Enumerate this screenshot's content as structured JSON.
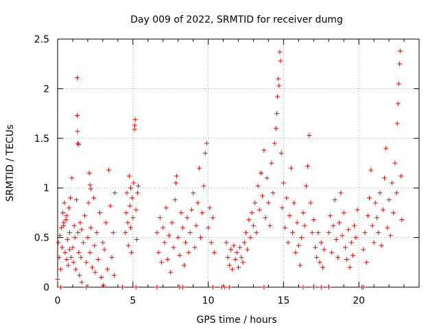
{
  "chart_data": {
    "type": "scatter",
    "title": "Day 009 of 2022, SRMTID for receiver dumg",
    "xlabel": "GPS time / hours",
    "ylabel": "SRMTID / TECUs",
    "xlim": [
      0,
      24
    ],
    "ylim": [
      0,
      2.5
    ],
    "grid": true,
    "x_ticks": [
      "0",
      "5",
      "10",
      "15",
      "20"
    ],
    "x_tick_values": [
      0,
      5,
      10,
      15,
      20
    ],
    "y_ticks": [
      "0",
      "0.5",
      "1",
      "1.5",
      "2",
      "2.5"
    ],
    "y_tick_values": [
      0,
      0.5,
      1,
      1.5,
      2,
      2.5
    ],
    "marker": "+",
    "color": "#ff0000",
    "series": [
      {
        "name": "SRMTID",
        "points": [
          [
            0.0,
            0.08
          ],
          [
            0.05,
            0.45
          ],
          [
            0.1,
            0.3
          ],
          [
            0.15,
            0.52
          ],
          [
            0.2,
            0.18
          ],
          [
            0.25,
            0.6
          ],
          [
            0.3,
            0.4
          ],
          [
            0.35,
            0.75
          ],
          [
            0.4,
            0.62
          ],
          [
            0.45,
            0.85
          ],
          [
            0.5,
            0.35
          ],
          [
            0.55,
            0.68
          ],
          [
            0.6,
            0.28
          ],
          [
            0.65,
            0.48
          ],
          [
            0.7,
            0.22
          ],
          [
            0.75,
            0.8
          ],
          [
            0.8,
            0.55
          ],
          [
            0.85,
            0.9
          ],
          [
            0.9,
            0.3
          ],
          [
            0.95,
            1.1
          ],
          [
            1.0,
            0.4
          ],
          [
            1.05,
            0.25
          ],
          [
            1.1,
            0.62
          ],
          [
            1.15,
            0.5
          ],
          [
            1.2,
            0.18
          ],
          [
            1.25,
            0.88
          ],
          [
            1.3,
            2.11
          ],
          [
            1.35,
            0.55
          ],
          [
            1.4,
            0.35
          ],
          [
            1.45,
            0.12
          ],
          [
            1.5,
            0.65
          ],
          [
            1.55,
            0.3
          ],
          [
            1.6,
            0.05
          ],
          [
            1.7,
            0.45
          ],
          [
            1.8,
            0.72
          ],
          [
            1.9,
            0.25
          ],
          [
            2.0,
            0.5
          ],
          [
            2.05,
            0.85
          ],
          [
            2.1,
            1.15
          ],
          [
            2.15,
            0.35
          ],
          [
            2.2,
            0.6
          ],
          [
            2.3,
            0.2
          ],
          [
            2.4,
            0.9
          ],
          [
            2.45,
            0.42
          ],
          [
            2.5,
            0.15
          ],
          [
            2.6,
            0.55
          ],
          [
            2.7,
            0.28
          ],
          [
            2.8,
            0.75
          ],
          [
            2.9,
            0.1
          ],
          [
            3.0,
            0.45
          ],
          [
            3.05,
            0.02
          ],
          [
            3.1,
            0.38
          ],
          [
            3.2,
            0.65
          ],
          [
            3.3,
            0.18
          ],
          [
            3.4,
            1.18
          ],
          [
            3.5,
            0.82
          ],
          [
            3.6,
            0.3
          ],
          [
            3.7,
            0.55
          ],
          [
            3.75,
            0.12
          ],
          [
            3.8,
            0.95
          ],
          [
            1.3,
            1.73
          ],
          [
            1.32,
            1.57
          ],
          [
            1.35,
            1.45
          ],
          [
            1.38,
            1.44
          ],
          [
            2.15,
            1.03
          ],
          [
            2.2,
            0.99
          ],
          [
            0.4,
            0.65
          ],
          [
            0.6,
            0.72
          ],
          [
            0.8,
            0.38
          ],
          [
            1.6,
            0.58
          ],
          [
            4.5,
            0.55
          ],
          [
            4.55,
            0.75
          ],
          [
            4.6,
            0.95
          ],
          [
            4.65,
            0.65
          ],
          [
            4.7,
            0.42
          ],
          [
            4.75,
            1.12
          ],
          [
            4.8,
            0.82
          ],
          [
            4.85,
            0.6
          ],
          [
            4.9,
            0.35
          ],
          [
            4.95,
            0.9
          ],
          [
            5.0,
            0.7
          ],
          [
            5.05,
            1.05
          ],
          [
            5.1,
            1.59
          ],
          [
            5.12,
            1.63
          ],
          [
            5.15,
            1.69
          ],
          [
            5.2,
            0.78
          ],
          [
            5.25,
            0.48
          ],
          [
            5.3,
            0.95
          ],
          [
            5.35,
            1.02
          ],
          [
            4.85,
            1.0
          ],
          [
            6.6,
            0.55
          ],
          [
            6.7,
            0.35
          ],
          [
            6.8,
            0.7
          ],
          [
            6.9,
            0.25
          ],
          [
            7.0,
            0.6
          ],
          [
            7.1,
            0.45
          ],
          [
            7.2,
            0.8
          ],
          [
            7.3,
            0.28
          ],
          [
            7.4,
            0.52
          ],
          [
            7.5,
            0.15
          ],
          [
            7.6,
            0.65
          ],
          [
            7.7,
            0.4
          ],
          [
            7.8,
            0.88
          ],
          [
            7.85,
            1.05
          ],
          [
            7.9,
            1.12
          ],
          [
            8.0,
            0.5
          ],
          [
            8.1,
            0.32
          ],
          [
            8.2,
            0.75
          ],
          [
            8.3,
            0.6
          ],
          [
            8.4,
            0.22
          ],
          [
            8.5,
            0.45
          ],
          [
            8.6,
            0.7
          ],
          [
            8.7,
            0.35
          ],
          [
            8.8,
            0.55
          ],
          [
            8.9,
            0.78
          ],
          [
            9.0,
            0.95
          ],
          [
            9.1,
            0.4
          ],
          [
            9.2,
            0.62
          ],
          [
            9.3,
            0.85
          ],
          [
            9.4,
            1.2
          ],
          [
            9.5,
            0.5
          ],
          [
            9.6,
            0.75
          ],
          [
            9.7,
            1.02
          ],
          [
            9.8,
            1.35
          ],
          [
            9.9,
            1.45
          ],
          [
            10.0,
            0.6
          ],
          [
            10.1,
            0.8
          ],
          [
            10.2,
            0.45
          ],
          [
            10.3,
            0.7
          ],
          [
            10.4,
            0.35
          ],
          [
            11.2,
            0.45
          ],
          [
            11.3,
            0.3
          ],
          [
            11.4,
            0.22
          ],
          [
            11.5,
            0.38
          ],
          [
            11.6,
            0.18
          ],
          [
            11.7,
            0.42
          ],
          [
            11.8,
            0.28
          ],
          [
            11.9,
            0.35
          ],
          [
            12.0,
            0.2
          ],
          [
            12.1,
            0.4
          ],
          [
            12.2,
            0.3
          ],
          [
            12.3,
            0.25
          ],
          [
            12.4,
            0.45
          ],
          [
            12.5,
            0.55
          ],
          [
            12.6,
            0.38
          ],
          [
            12.7,
            0.68
          ],
          [
            12.8,
            0.5
          ],
          [
            12.9,
            0.75
          ],
          [
            13.0,
            0.62
          ],
          [
            13.1,
            0.85
          ],
          [
            13.2,
            0.55
          ],
          [
            13.3,
            1.02
          ],
          [
            13.4,
            0.78
          ],
          [
            13.5,
            1.15
          ],
          [
            13.6,
            0.92
          ],
          [
            13.7,
            1.38
          ],
          [
            13.8,
            0.7
          ],
          [
            13.9,
            1.1
          ],
          [
            14.0,
            0.85
          ],
          [
            14.1,
            0.62
          ],
          [
            14.2,
            1.25
          ],
          [
            14.3,
            0.95
          ],
          [
            14.4,
            1.45
          ],
          [
            14.5,
            1.6
          ],
          [
            14.55,
            1.75
          ],
          [
            14.6,
            1.92
          ],
          [
            14.65,
            2.1
          ],
          [
            14.7,
            2.03
          ],
          [
            14.75,
            2.37
          ],
          [
            14.8,
            2.28
          ],
          [
            14.85,
            1.35
          ],
          [
            14.9,
            0.8
          ],
          [
            15.0,
            1.05
          ],
          [
            15.1,
            0.6
          ],
          [
            15.2,
            0.9
          ],
          [
            15.3,
            0.45
          ],
          [
            15.4,
            0.72
          ],
          [
            15.5,
            1.2
          ],
          [
            15.6,
            0.55
          ],
          [
            15.7,
            0.85
          ],
          [
            15.8,
            0.35
          ],
          [
            15.9,
            0.65
          ],
          [
            16.0,
            0.42
          ],
          [
            16.1,
            0.22
          ],
          [
            16.2,
            0.5
          ],
          [
            16.3,
            0.75
          ],
          [
            16.4,
            0.62
          ],
          [
            16.5,
            1.02
          ],
          [
            16.6,
            1.22
          ],
          [
            16.7,
            1.53
          ],
          [
            16.8,
            0.85
          ],
          [
            16.9,
            0.55
          ],
          [
            17.0,
            0.68
          ],
          [
            17.1,
            0.4
          ],
          [
            17.2,
            0.3
          ],
          [
            17.3,
            0.55
          ],
          [
            17.4,
            0.25
          ],
          [
            17.5,
            0.45
          ],
          [
            17.6,
            0.2
          ],
          [
            17.7,
            0.38
          ],
          [
            18.0,
            0.55
          ],
          [
            18.1,
            0.72
          ],
          [
            18.2,
            0.35
          ],
          [
            18.3,
            0.62
          ],
          [
            18.4,
            0.88
          ],
          [
            18.5,
            0.48
          ],
          [
            18.6,
            0.3
          ],
          [
            18.7,
            0.65
          ],
          [
            18.8,
            0.95
          ],
          [
            18.9,
            0.52
          ],
          [
            19.0,
            0.75
          ],
          [
            19.1,
            0.4
          ],
          [
            19.2,
            0.28
          ],
          [
            19.3,
            0.58
          ],
          [
            19.4,
            0.2
          ],
          [
            19.5,
            0.45
          ],
          [
            19.6,
            0.32
          ],
          [
            19.7,
            0.62
          ],
          [
            19.8,
            0.5
          ],
          [
            19.9,
            0.78
          ],
          [
            20.3,
            0.38
          ],
          [
            20.4,
            0.55
          ],
          [
            20.5,
            0.25
          ],
          [
            20.6,
            0.72
          ],
          [
            20.7,
            0.9
          ],
          [
            20.8,
            1.18
          ],
          [
            20.9,
            0.62
          ],
          [
            21.0,
            0.45
          ],
          [
            21.1,
            0.85
          ],
          [
            21.2,
            0.7
          ],
          [
            21.3,
            0.55
          ],
          [
            21.4,
            0.95
          ],
          [
            21.5,
            0.42
          ],
          [
            21.6,
            0.78
          ],
          [
            21.7,
            1.1
          ],
          [
            21.8,
            1.4
          ],
          [
            21.9,
            0.6
          ],
          [
            22.0,
            0.88
          ],
          [
            22.1,
            0.52
          ],
          [
            22.2,
            1.05
          ],
          [
            22.3,
            0.75
          ],
          [
            22.4,
            1.25
          ],
          [
            22.5,
            0.95
          ],
          [
            22.55,
            1.65
          ],
          [
            22.6,
            1.85
          ],
          [
            22.65,
            2.05
          ],
          [
            22.7,
            2.25
          ],
          [
            22.75,
            2.38
          ],
          [
            22.8,
            1.12
          ],
          [
            22.85,
            0.68
          ],
          [
            0.2,
            0.0
          ],
          [
            1.9,
            0.0
          ],
          [
            4.3,
            0.0
          ],
          [
            5.2,
            0.0
          ],
          [
            6.6,
            0.0
          ],
          [
            8.1,
            0.0
          ],
          [
            8.3,
            0.0
          ],
          [
            10.3,
            0.0
          ],
          [
            10.9,
            0.0
          ],
          [
            11.1,
            0.0
          ],
          [
            11.4,
            0.0
          ],
          [
            13.7,
            0.0
          ],
          [
            16.3,
            0.0
          ],
          [
            17.0,
            0.0
          ],
          [
            17.5,
            0.0
          ],
          [
            18.0,
            0.0
          ],
          [
            20.2,
            0.0
          ],
          [
            20.3,
            0.0
          ]
        ]
      }
    ]
  }
}
